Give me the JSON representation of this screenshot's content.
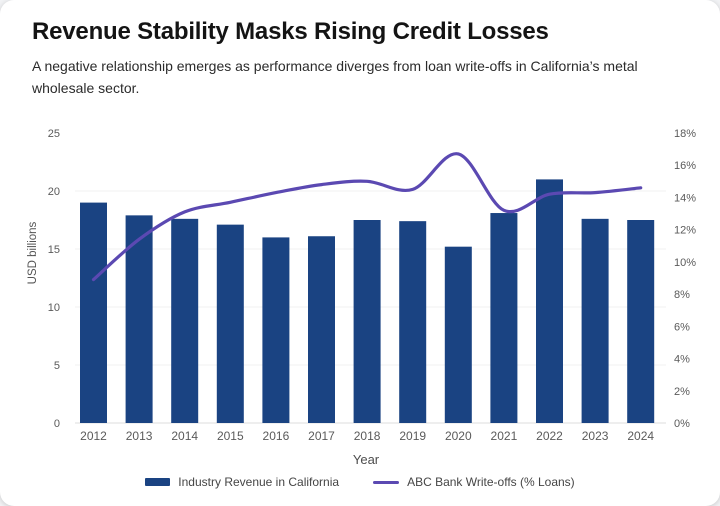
{
  "card": {
    "title": "Revenue Stability Masks Rising Credit Losses",
    "subtitle": "A negative relationship emerges as performance diverges from loan write-offs in California’s metal wholesale sector."
  },
  "chart_data": {
    "type": "bar+line combo",
    "categories": [
      "2012",
      "2013",
      "2014",
      "2015",
      "2016",
      "2017",
      "2018",
      "2019",
      "2020",
      "2021",
      "2022",
      "2023",
      "2024"
    ],
    "series": [
      {
        "name": "Industry Revenue in California",
        "type": "bar",
        "axis": "left",
        "color": "#1a4382",
        "values": [
          19.0,
          17.9,
          17.6,
          17.1,
          16.0,
          16.1,
          17.5,
          17.4,
          15.2,
          18.1,
          21.0,
          17.6,
          17.5
        ]
      },
      {
        "name": "ABC Bank Write-offs (% Loans)",
        "type": "line",
        "axis": "right",
        "color": "#5b49b2",
        "smooth": true,
        "values": [
          8.9,
          11.4,
          13.1,
          13.7,
          14.3,
          14.8,
          15.0,
          14.5,
          16.7,
          13.2,
          14.2,
          14.3,
          14.6
        ]
      }
    ],
    "left_axis": {
      "label": "USD billions",
      "min": 0,
      "max": 25,
      "ticks": [
        0,
        5,
        10,
        15,
        20,
        25
      ]
    },
    "right_axis": {
      "min": 0,
      "max": 18,
      "ticks": [
        "0%",
        "2%",
        "4%",
        "6%",
        "8%",
        "10%",
        "12%",
        "14%",
        "16%",
        "18%"
      ]
    },
    "x_axis": {
      "label": "Year"
    },
    "grid": true,
    "legend_position": "bottom",
    "colors": {
      "gridline": "#f0f0f0",
      "baseline": "#dedede",
      "tick_text": "#5a5a5a"
    }
  }
}
